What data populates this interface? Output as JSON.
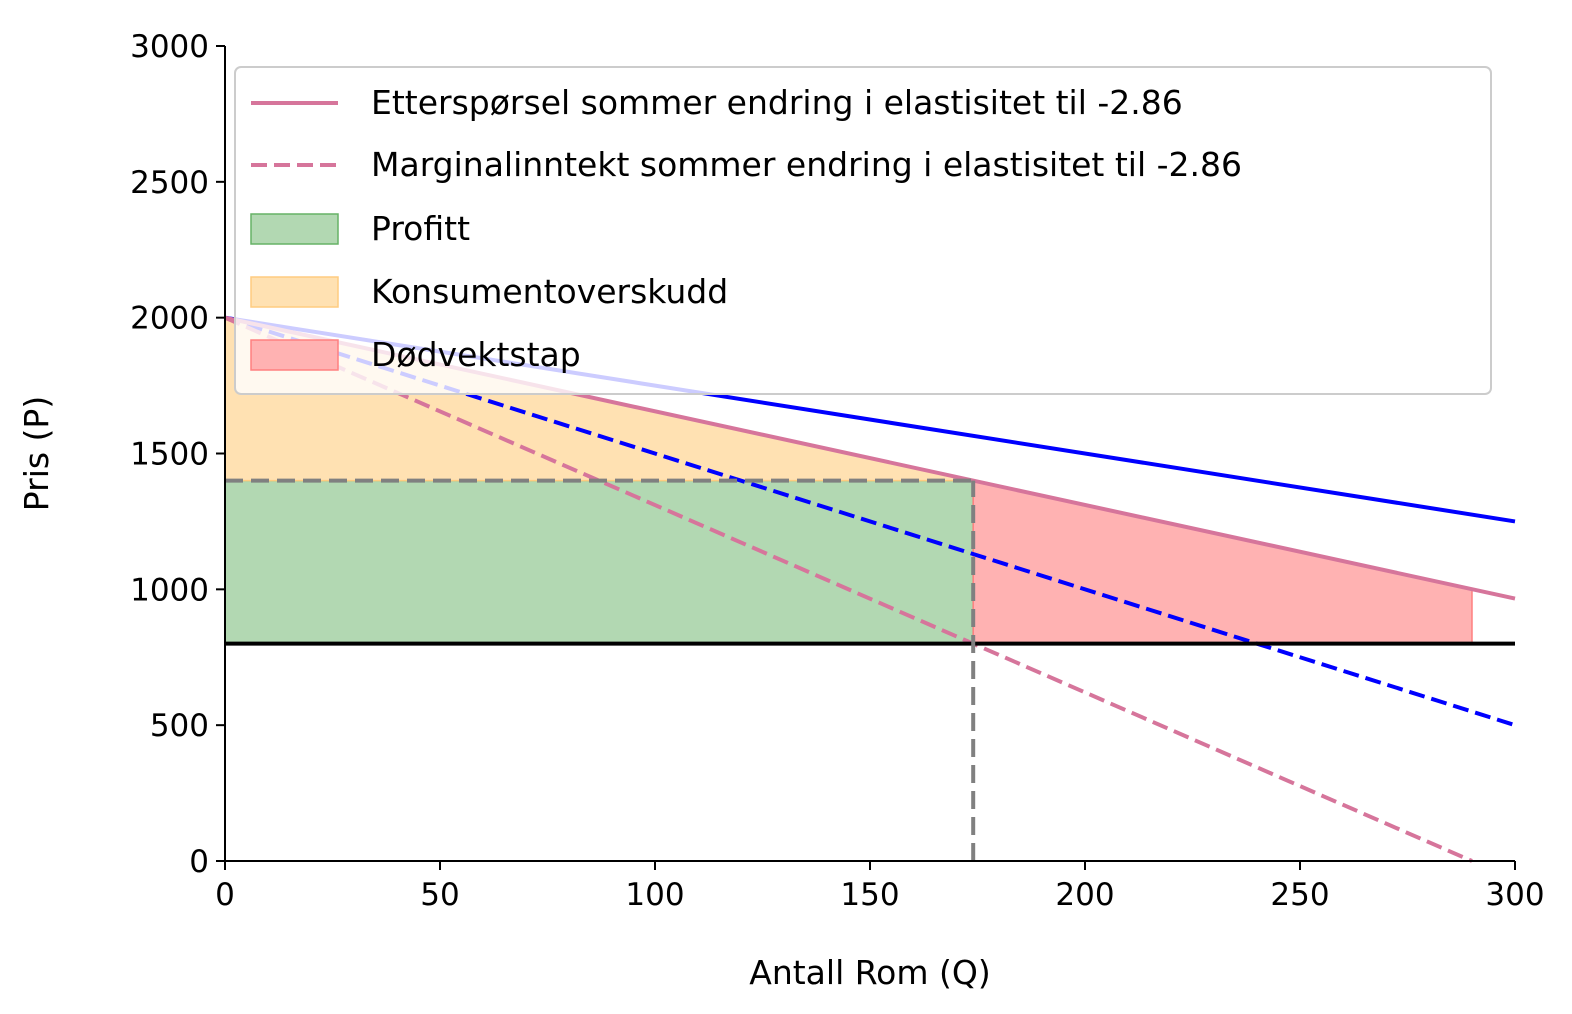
{
  "chart_data": {
    "type": "line",
    "xlabel": "Antall Rom (Q)",
    "ylabel": "Pris (P)",
    "xlim": [
      0,
      300
    ],
    "ylim": [
      0,
      3000
    ],
    "xticks": [
      "0",
      "50",
      "100",
      "150",
      "200",
      "250",
      "300"
    ],
    "yticks": [
      "0",
      "500",
      "1000",
      "1500",
      "2000",
      "2500",
      "3000"
    ],
    "grid": false,
    "legend_position": "top-right",
    "series": [
      {
        "kind": "line",
        "style": "solid",
        "color": "#0000ff",
        "x": [
          0,
          300
        ],
        "y": [
          2000,
          1250
        ]
      },
      {
        "kind": "line",
        "style": "dashed",
        "color": "#0000ff",
        "x": [
          0,
          300
        ],
        "y": [
          2000,
          500
        ]
      },
      {
        "name": "Etterspørsel sommer endring i elastisitet til -2.86",
        "kind": "line",
        "style": "solid",
        "color": "#d6759b",
        "x": [
          0,
          300
        ],
        "y": [
          2000,
          966
        ]
      },
      {
        "name": "Marginalinntekt sommer endring i elastisitet til -2.86",
        "kind": "line",
        "style": "dashed",
        "color": "#d6759b",
        "x": [
          0,
          290
        ],
        "y": [
          2000,
          0
        ]
      },
      {
        "kind": "line",
        "style": "solid",
        "color": "#000000",
        "x": [
          0,
          300
        ],
        "y": [
          800,
          800
        ]
      }
    ],
    "areas": [
      {
        "name": "Profitt",
        "color": "#b2d8b2",
        "border": "#66b266",
        "x": [
          0,
          174,
          174,
          0
        ],
        "y": [
          800,
          800,
          1400,
          1400
        ]
      },
      {
        "name": "Konsumentoverskudd",
        "color": "#ffe1b2",
        "border": "#ffcc80",
        "x": [
          0,
          174,
          174,
          0
        ],
        "y": [
          1400,
          1400,
          1400,
          2000
        ]
      },
      {
        "name": "Dødvektstap",
        "color": "#ffb2b2",
        "border": "#ff8080",
        "x": [
          174,
          290,
          290,
          174
        ],
        "y": [
          800,
          800,
          1000,
          1400
        ]
      }
    ],
    "guides": {
      "q": 174,
      "p": 1400,
      "color": "#808080"
    }
  }
}
